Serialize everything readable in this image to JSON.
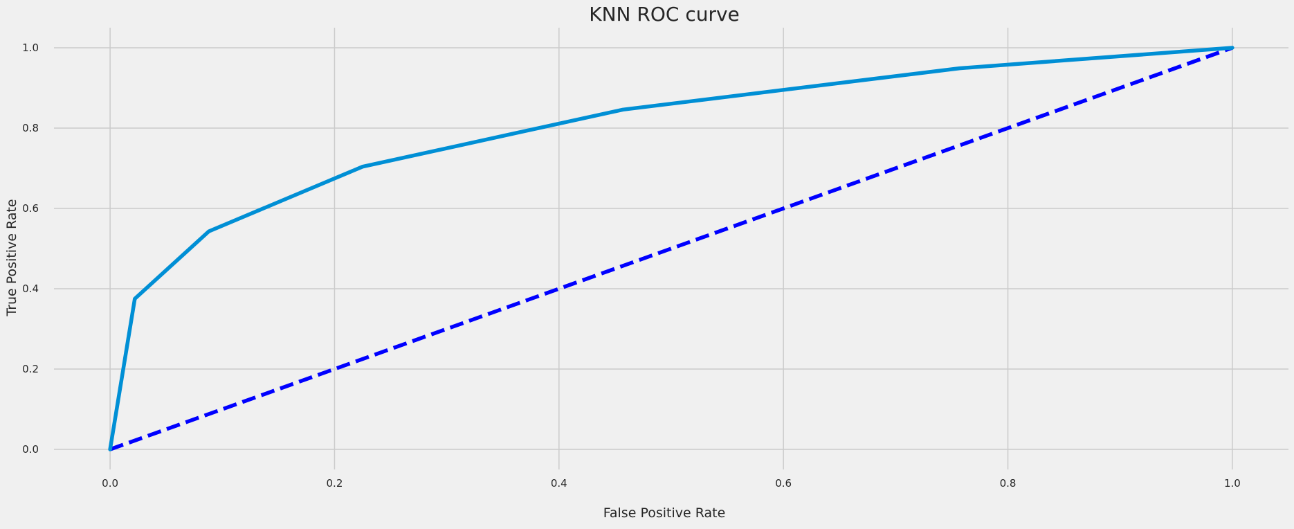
{
  "chart_data": {
    "type": "line",
    "title": "KNN ROC curve",
    "xlabel": "False Positive Rate",
    "ylabel": "True Positive Rate",
    "xlim": [
      -0.05,
      1.05
    ],
    "ylim": [
      -0.05,
      1.05
    ],
    "x_ticks": [
      0.0,
      0.2,
      0.4,
      0.6,
      0.8,
      1.0
    ],
    "y_ticks": [
      0.0,
      0.2,
      0.4,
      0.6,
      0.8,
      1.0
    ],
    "x_tick_labels": [
      "0.0",
      "0.2",
      "0.4",
      "0.6",
      "0.8",
      "1.0"
    ],
    "y_tick_labels": [
      "0.0",
      "0.2",
      "0.4",
      "0.6",
      "0.8",
      "1.0"
    ],
    "grid": true,
    "series": [
      {
        "style": "solid",
        "color": "#008fd5",
        "x": [
          0.0,
          0.022,
          0.088,
          0.225,
          0.457,
          0.757,
          1.0
        ],
        "y": [
          0.0,
          0.375,
          0.543,
          0.704,
          0.846,
          0.949,
          1.0
        ]
      },
      {
        "style": "dashed",
        "color": "#0000ff",
        "x": [
          0.0,
          1.0
        ],
        "y": [
          0.0,
          1.0
        ]
      }
    ]
  }
}
